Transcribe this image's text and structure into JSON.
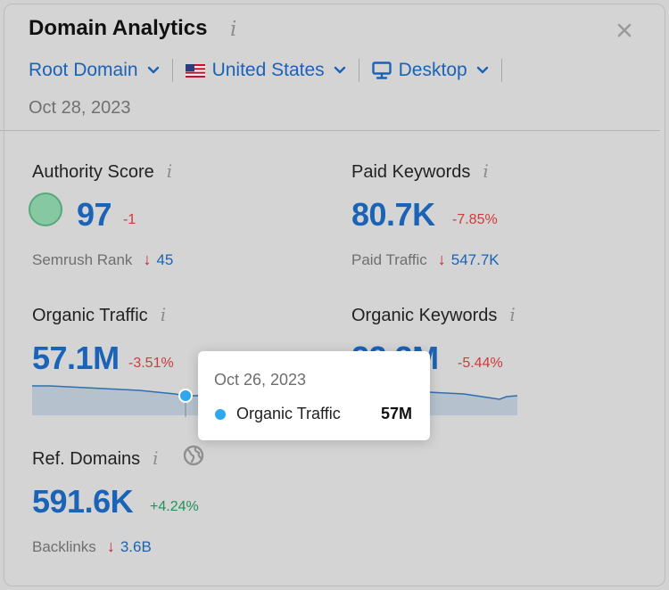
{
  "widget": {
    "title": "Domain Analytics",
    "info_glyph": "i",
    "close_icon": "close-icon"
  },
  "filters": {
    "scope": "Root Domain",
    "country": "United States",
    "device": "Desktop"
  },
  "date": "Oct 28, 2023",
  "metrics": {
    "authority_score": {
      "label": "Authority Score",
      "value": "97",
      "delta": "-1",
      "sub_label": "Semrush Rank",
      "sub_value": "45",
      "sub_trend": "down"
    },
    "paid_keywords": {
      "label": "Paid Keywords",
      "value": "80.7K",
      "delta": "-7.85%",
      "sub_label": "Paid Traffic",
      "sub_value": "547.7K",
      "sub_trend": "down"
    },
    "organic_traffic": {
      "label": "Organic Traffic",
      "value": "57.1M",
      "delta": "-3.51%"
    },
    "organic_keywords": {
      "label": "Organic Keywords",
      "value": "22.2M",
      "delta": "-5.44%"
    },
    "ref_domains": {
      "label": "Ref. Domains",
      "value": "591.6K",
      "delta": "+4.24%",
      "sub_label": "Backlinks",
      "sub_value": "3.6B",
      "sub_trend": "down"
    }
  },
  "tooltip": {
    "date": "Oct 26, 2023",
    "series": "Organic Traffic",
    "value": "57M"
  },
  "colors": {
    "accent": "#1a63b6",
    "negative": "#cf3a3a",
    "positive": "#22915a",
    "series": "#2ea8ef"
  }
}
